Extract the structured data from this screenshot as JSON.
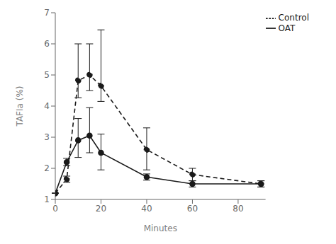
{
  "chart_data": {
    "type": "line",
    "x": [
      0,
      5,
      10,
      15,
      20,
      40,
      60,
      90
    ],
    "series": [
      {
        "name": "Control",
        "color": "#1a1a1a",
        "line_style": "dashed",
        "marker": "circle",
        "values": [
          1.2,
          1.65,
          4.82,
          5.0,
          4.65,
          2.6,
          1.8,
          1.5
        ],
        "error_upper": [
          0,
          0.1,
          1.18,
          1.0,
          1.8,
          0.7,
          0.2,
          0.1
        ],
        "error_lower": [
          0,
          0.1,
          0.55,
          0.5,
          0.5,
          0.65,
          0.2,
          0.1
        ]
      },
      {
        "name": "OAT",
        "color": "#1a1a1a",
        "line_style": "solid",
        "marker": "circle",
        "values": [
          1.2,
          2.2,
          2.9,
          3.05,
          2.5,
          1.72,
          1.5,
          1.5
        ],
        "error_upper": [
          0,
          0.12,
          0.7,
          0.9,
          0.6,
          0.1,
          0.1,
          0.1
        ],
        "error_lower": [
          0,
          0.12,
          0.55,
          0.55,
          0.55,
          0.1,
          0.1,
          0.1
        ]
      }
    ],
    "xlabel": "Minutes",
    "ylabel": "TAFIa (%)",
    "xlim": [
      0,
      92
    ],
    "ylim": [
      1.0,
      7.0
    ],
    "xticks": [
      0,
      20,
      40,
      60,
      80
    ],
    "yticks": [
      1,
      2,
      3,
      4,
      5,
      6,
      7
    ],
    "legend": "upper right",
    "grid": false
  }
}
